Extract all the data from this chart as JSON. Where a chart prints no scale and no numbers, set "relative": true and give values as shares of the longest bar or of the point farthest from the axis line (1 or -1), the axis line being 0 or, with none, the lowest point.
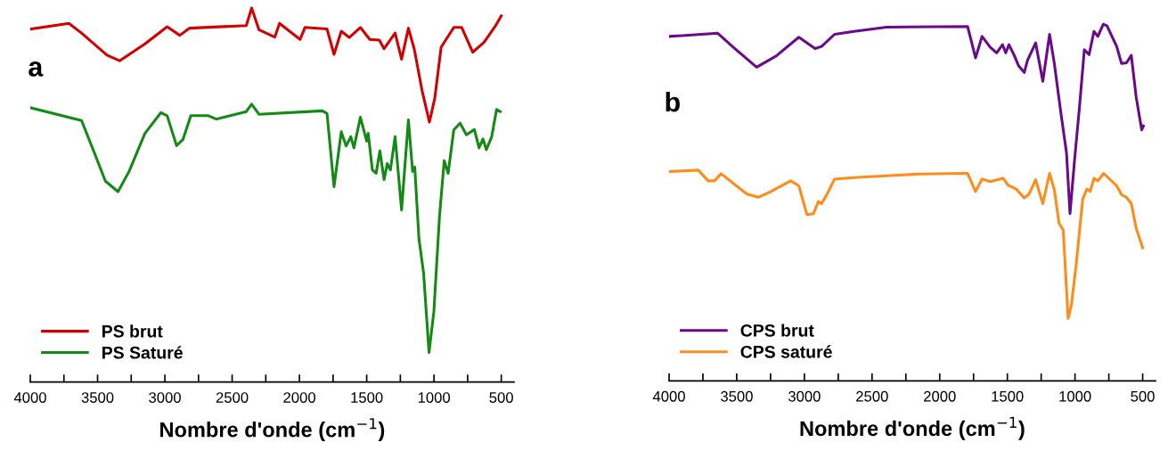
{
  "chart_data": [
    {
      "type": "line",
      "relative": true,
      "xlabel": "Nombre d'onde (cm$^{−1}$)",
      "annotations": [
        "a"
      ],
      "legend": "bottom left",
      "grid": false,
      "tick_labels": "x",
      "xlim": [
        4000,
        405
      ],
      "xticks": [
        4000,
        {
          "value": 3750,
          "label": null
        },
        3500,
        {
          "value": 3250,
          "label": null
        },
        3000,
        {
          "value": 2750,
          "label": null
        },
        2500,
        {
          "value": 2250,
          "label": null
        },
        2000,
        {
          "value": 1750,
          "label": null
        },
        1500,
        {
          "value": 1250,
          "label": null
        },
        1000,
        {
          "value": 750,
          "label": null
        },
        500
      ],
      "series": [
        {
          "name": "PS brut",
          "color": "#d40000",
          "x": [
            3995,
            3713,
            3619,
            3430,
            3336,
            3148,
            2983,
            2889,
            2818,
            2395,
            2355,
            2301,
            2183,
            2148,
            1995,
            1959,
            1795,
            1743,
            1689,
            1630,
            1547,
            1477,
            1406,
            1371,
            1289,
            1241,
            1190,
            1147,
            1089,
            1034,
            994,
            947,
            853,
            794,
            712,
            629,
            547,
            500
          ],
          "values": [
            0.944,
            0.959,
            0.933,
            0.874,
            0.859,
            0.904,
            0.95,
            0.927,
            0.946,
            0.953,
            1.0,
            0.942,
            0.922,
            0.959,
            0.916,
            0.948,
            0.944,
            0.876,
            0.938,
            0.921,
            0.948,
            0.916,
            0.914,
            0.891,
            0.933,
            0.863,
            0.946,
            0.891,
            0.78,
            0.695,
            0.759,
            0.895,
            0.948,
            0.948,
            0.882,
            0.908,
            0.95,
            0.979
          ]
        },
        {
          "name": "PS Saturé",
          "color": "#138a13",
          "x": [
            3995,
            3619,
            3525,
            3442,
            3348,
            3266,
            3148,
            3030,
            2983,
            2913,
            2866,
            2807,
            2677,
            2618,
            2395,
            2355,
            2301,
            1830,
            1795,
            1743,
            1689,
            1653,
            1618,
            1595,
            1547,
            1500,
            1489,
            1458,
            1430,
            1402,
            1371,
            1347,
            1324,
            1289,
            1241,
            1190,
            1159,
            1143,
            1112,
            1077,
            1037,
            1001,
            959,
            924,
            895,
            853,
            806,
            759,
            700,
            665,
            636,
            611,
            571,
            535,
            507
          ],
          "values": [
            0.733,
            0.699,
            0.614,
            0.537,
            0.509,
            0.563,
            0.665,
            0.72,
            0.712,
            0.632,
            0.648,
            0.712,
            0.712,
            0.703,
            0.723,
            0.743,
            0.716,
            0.725,
            0.718,
            0.522,
            0.669,
            0.631,
            0.656,
            0.626,
            0.708,
            0.644,
            0.665,
            0.567,
            0.558,
            0.618,
            0.541,
            0.584,
            0.567,
            0.656,
            0.46,
            0.701,
            0.563,
            0.575,
            0.384,
            0.29,
            0.079,
            0.188,
            0.443,
            0.592,
            0.558,
            0.674,
            0.692,
            0.661,
            0.675,
            0.626,
            0.65,
            0.621,
            0.656,
            0.729,
            0.723
          ]
        }
      ]
    },
    {
      "type": "line",
      "relative": true,
      "xlabel": "Nombre d'onde (cm$^{−1}$)",
      "annotations": [
        "b"
      ],
      "legend": "bottom left",
      "grid": false,
      "tick_labels": "x",
      "xlim": [
        4000,
        405
      ],
      "xticks": [
        4000,
        {
          "value": 3750,
          "label": null
        },
        3500,
        {
          "value": 3250,
          "label": null
        },
        3000,
        {
          "value": 2750,
          "label": null
        },
        2500,
        {
          "value": 2250,
          "label": null
        },
        2000,
        {
          "value": 1750,
          "label": null
        },
        1500,
        {
          "value": 1250,
          "label": null
        },
        1000,
        {
          "value": 750,
          "label": null
        },
        500
      ],
      "series": [
        {
          "name": "CPS brut",
          "color": "#6a0a8a",
          "x": [
            4000,
            3640,
            3521,
            3353,
            3209,
            3041,
            2921,
            2873,
            2777,
            2634,
            2394,
            1794,
            1735,
            1687,
            1627,
            1579,
            1536,
            1512,
            1488,
            1447,
            1416,
            1375,
            1351,
            1291,
            1238,
            1188,
            1152,
            1104,
            1063,
            1037,
            1003,
            967,
            931,
            896,
            860,
            831,
            792,
            764,
            692,
            656,
            620,
            584,
            548,
            507,
            495
          ],
          "values": [
            0.966,
            0.975,
            0.934,
            0.88,
            0.911,
            0.964,
            0.932,
            0.938,
            0.972,
            0.98,
            0.992,
            0.994,
            0.906,
            0.966,
            0.936,
            0.92,
            0.943,
            0.92,
            0.943,
            0.911,
            0.883,
            0.865,
            0.899,
            0.948,
            0.84,
            0.972,
            0.888,
            0.75,
            0.64,
            0.469,
            0.621,
            0.768,
            0.929,
            0.915,
            0.98,
            0.966,
            1.0,
            0.996,
            0.938,
            0.89,
            0.892,
            0.913,
            0.796,
            0.704,
            0.715
          ]
        },
        {
          "name": "CPS saturé",
          "color": "#ff8c1a",
          "x": [
            4000,
            3784,
            3712,
            3664,
            3616,
            3425,
            3341,
            3257,
            3101,
            3041,
            2981,
            2933,
            2897,
            2873,
            2825,
            2777,
            2634,
            2154,
            1794,
            1735,
            1687,
            1627,
            1531,
            1495,
            1435,
            1375,
            1339,
            1291,
            1238,
            1188,
            1152,
            1118,
            1087,
            1051,
            1027,
            991,
            943,
            912,
            888,
            860,
            831,
            788,
            692,
            656,
            620,
            584,
            548,
            500
          ],
          "values": [
            0.587,
            0.591,
            0.561,
            0.561,
            0.581,
            0.524,
            0.515,
            0.529,
            0.561,
            0.547,
            0.466,
            0.469,
            0.503,
            0.497,
            0.529,
            0.566,
            0.57,
            0.58,
            0.582,
            0.531,
            0.566,
            0.559,
            0.568,
            0.549,
            0.538,
            0.513,
            0.524,
            0.564,
            0.497,
            0.582,
            0.534,
            0.442,
            0.423,
            0.175,
            0.212,
            0.327,
            0.51,
            0.538,
            0.531,
            0.568,
            0.561,
            0.582,
            0.547,
            0.522,
            0.515,
            0.497,
            0.428,
            0.373
          ]
        }
      ]
    }
  ]
}
